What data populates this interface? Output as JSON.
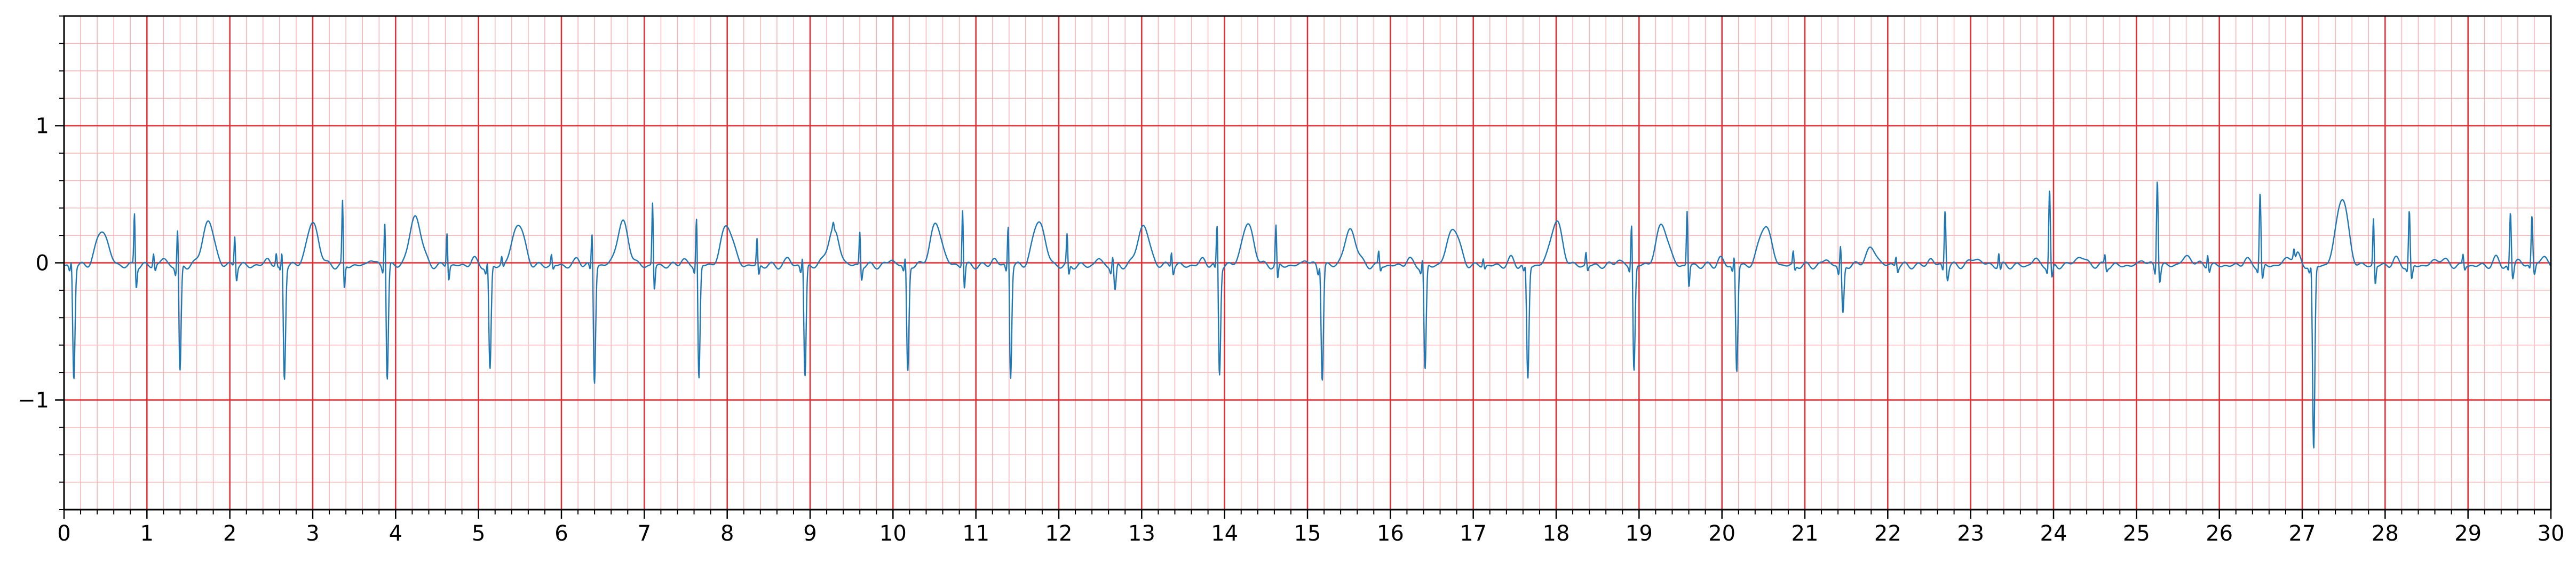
{
  "chart_data": {
    "type": "line",
    "title": "",
    "xlabel": "",
    "ylabel": "",
    "xlim": [
      0,
      30
    ],
    "ylim": [
      -1.8,
      1.8
    ],
    "x_ticks": [
      0,
      1,
      2,
      3,
      4,
      5,
      6,
      7,
      8,
      9,
      10,
      11,
      12,
      13,
      14,
      15,
      16,
      17,
      18,
      19,
      20,
      21,
      22,
      23,
      24,
      25,
      26,
      27,
      28,
      29,
      30
    ],
    "x_tick_labels": [
      "0",
      "1",
      "2",
      "3",
      "4",
      "5",
      "6",
      "7",
      "8",
      "9",
      "10",
      "11",
      "12",
      "13",
      "14",
      "15",
      "16",
      "17",
      "18",
      "19",
      "20",
      "21",
      "22",
      "23",
      "24",
      "25",
      "26",
      "27",
      "28",
      "29",
      "30"
    ],
    "y_ticks": [
      -1,
      0,
      1
    ],
    "y_tick_labels": [
      "−1",
      "0",
      "1"
    ],
    "grid": {
      "major": {
        "x_step": 1,
        "y_step": 1,
        "color": "#e8292e"
      },
      "minor": {
        "x_step": 0.2,
        "y_step": 0.2,
        "color": "#f7b3b3"
      }
    },
    "series": [
      {
        "color": "#1f77b4",
        "sample_interval": 0.025,
        "beats": [
          {
            "t": 0.1,
            "q": -0.05,
            "r": 0.12,
            "s": -0.82,
            "t_wave": 0.26
          },
          {
            "t": 1.38,
            "q": -0.08,
            "r": 0.38,
            "s": -0.8,
            "t_wave": 0.32
          },
          {
            "t": 2.64,
            "q": -0.06,
            "r": 0.2,
            "s": -0.82,
            "t_wave": 0.31
          },
          {
            "t": 3.88,
            "q": -0.05,
            "r": 0.46,
            "s": -0.84,
            "t_wave": 0.36
          },
          {
            "t": 5.12,
            "q": -0.06,
            "r": 0.1,
            "s": -0.78,
            "t_wave": 0.31
          },
          {
            "t": 6.38,
            "q": -0.05,
            "r": 0.36,
            "s": -0.86,
            "t_wave": 0.31
          },
          {
            "t": 7.64,
            "q": -0.06,
            "r": 0.48,
            "s": -0.84,
            "t_wave": 0.3
          },
          {
            "t": 8.92,
            "q": -0.06,
            "r": 0.16,
            "s": -0.82,
            "t_wave": 0.26
          },
          {
            "t": 10.16,
            "q": -0.05,
            "r": 0.14,
            "s": -0.78,
            "t_wave": 0.3
          },
          {
            "t": 11.4,
            "q": -0.06,
            "r": 0.42,
            "s": -0.82,
            "t_wave": 0.33
          },
          {
            "t": 12.66,
            "q": -0.05,
            "r": 0.1,
            "s": -0.2,
            "t_wave": 0.29
          },
          {
            "t": 13.92,
            "q": -0.05,
            "r": 0.4,
            "s": -0.8,
            "t_wave": 0.3
          },
          {
            "t": 15.16,
            "q": -0.06,
            "r": 0.1,
            "s": -0.83,
            "t_wave": 0.26
          },
          {
            "t": 16.4,
            "q": -0.05,
            "r": 0.14,
            "s": -0.78,
            "t_wave": 0.28
          },
          {
            "t": 17.64,
            "q": -0.06,
            "r": 0.06,
            "s": -0.83,
            "t_wave": 0.32
          },
          {
            "t": 18.92,
            "q": -0.05,
            "r": 0.42,
            "s": -0.78,
            "t_wave": 0.3
          },
          {
            "t": 20.16,
            "q": -0.05,
            "r": 0.16,
            "s": -0.78,
            "t_wave": 0.3
          },
          {
            "t": 21.44,
            "q": -0.08,
            "r": 0.2,
            "s": -0.36,
            "t_wave": 0.12
          },
          {
            "t": 22.7,
            "q": -0.05,
            "r": 0.44,
            "s": -0.1,
            "t_wave": 0.05
          },
          {
            "t": 23.96,
            "q": -0.06,
            "r": 0.58,
            "s": -0.12,
            "t_wave": 0.06
          },
          {
            "t": 25.26,
            "q": -0.08,
            "r": 0.68,
            "s": -0.12,
            "t_wave": 0.06
          },
          {
            "t": 26.5,
            "q": -0.05,
            "r": 0.56,
            "s": -0.12,
            "t_wave": 0.06
          },
          {
            "t": 27.12,
            "q": -0.06,
            "r": 0.1,
            "s": -1.36,
            "t_wave": 0.5
          },
          {
            "t": 28.3,
            "q": -0.05,
            "r": 0.42,
            "s": -0.12,
            "t_wave": 0.05
          },
          {
            "t": 29.52,
            "q": -0.06,
            "r": 0.4,
            "s": -0.12,
            "t_wave": 0.05
          },
          {
            "t": 29.78,
            "q": -0.05,
            "r": 0.36,
            "s": -0.1,
            "t_wave": 0.04
          }
        ],
        "spikes": [
          {
            "t": 0.85,
            "v": 0.4
          },
          {
            "t": 1.08,
            "v": 0.1
          },
          {
            "t": 2.06,
            "v": 0.24
          },
          {
            "t": 2.56,
            "v": 0.08
          },
          {
            "t": 3.36,
            "v": 0.48
          },
          {
            "t": 4.62,
            "v": 0.26
          },
          {
            "t": 5.28,
            "v": 0.06
          },
          {
            "t": 5.88,
            "v": 0.08
          },
          {
            "t": 7.1,
            "v": 0.48
          },
          {
            "t": 8.36,
            "v": 0.2
          },
          {
            "t": 9.28,
            "v": 0.04
          },
          {
            "t": 9.6,
            "v": 0.26
          },
          {
            "t": 10.84,
            "v": 0.44
          },
          {
            "t": 12.1,
            "v": 0.22
          },
          {
            "t": 13.36,
            "v": 0.12
          },
          {
            "t": 14.62,
            "v": 0.3
          },
          {
            "t": 15.86,
            "v": 0.1
          },
          {
            "t": 17.12,
            "v": 0.06
          },
          {
            "t": 18.36,
            "v": 0.1
          },
          {
            "t": 19.58,
            "v": 0.42
          },
          {
            "t": 20.86,
            "v": 0.1
          },
          {
            "t": 22.1,
            "v": 0.08
          },
          {
            "t": 23.34,
            "v": 0.1
          },
          {
            "t": 24.62,
            "v": 0.08
          },
          {
            "t": 25.86,
            "v": 0.1
          },
          {
            "t": 26.9,
            "v": 0.06
          },
          {
            "t": 27.86,
            "v": 0.36
          },
          {
            "t": 28.94,
            "v": 0.08
          }
        ]
      }
    ]
  }
}
